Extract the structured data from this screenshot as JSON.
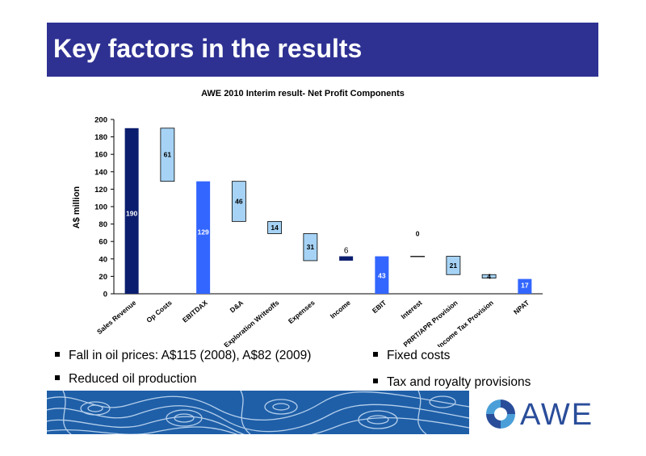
{
  "slide": {
    "title": "Key factors in the results",
    "bullets_left": [
      "Fall in oil prices: A$115 (2008), A$82 (2009)",
      "Reduced oil production"
    ],
    "bullets_right": [
      "Fixed costs",
      "Tax and royalty provisions"
    ],
    "logo_text": "AWE",
    "colors": {
      "title_bg": "#2e3192",
      "navy": "#0b1d6e",
      "blue": "#3366ff",
      "light_blue": "#a6d3f5"
    }
  },
  "chart_data": {
    "type": "bar",
    "subtype": "waterfall",
    "title": "AWE 2010 Interim result- Net Profit Components",
    "ylabel": "A$ million",
    "ylim": [
      0,
      200
    ],
    "yticks": [
      "0",
      "20",
      "40",
      "60",
      "80",
      "100",
      "120",
      "140",
      "160",
      "180",
      "200"
    ],
    "categories": [
      "Sales Revenue",
      "Op Costs",
      "EBITDAX",
      "D&A",
      "Exploration Writeoffs",
      "Expenses",
      "Income",
      "EBIT",
      "Interest",
      "PRRT/APR Provision",
      "Income Tax Provision",
      "NPAT"
    ],
    "bars": [
      {
        "label": "190",
        "bottom": 0,
        "top": 190,
        "color": "#0b1d6e",
        "label_color": "#ffffff"
      },
      {
        "label": "61",
        "bottom": 129,
        "top": 190,
        "color": "#a6d3f5",
        "label_color": "#000000"
      },
      {
        "label": "129",
        "bottom": 0,
        "top": 129,
        "color": "#3366ff",
        "label_color": "#ffffff"
      },
      {
        "label": "46",
        "bottom": 83,
        "top": 129,
        "color": "#a6d3f5",
        "label_color": "#000000"
      },
      {
        "label": "14",
        "bottom": 69,
        "top": 83,
        "color": "#a6d3f5",
        "label_color": "#000000"
      },
      {
        "label": "31",
        "bottom": 38,
        "top": 69,
        "color": "#a6d3f5",
        "label_color": "#000000"
      },
      {
        "label": "6",
        "bottom": 38,
        "top": 43,
        "color": "#0b1d6e",
        "label_color": "#000000"
      },
      {
        "label": "43",
        "bottom": 0,
        "top": 43,
        "color": "#3366ff",
        "label_color": "#ffffff"
      },
      {
        "label": "0",
        "bottom": 43,
        "top": 43,
        "color": "#a6d3f5",
        "label_color": "#000000"
      },
      {
        "label": "21",
        "bottom": 22,
        "top": 43,
        "color": "#a6d3f5",
        "label_color": "#000000"
      },
      {
        "label": "4",
        "bottom": 18,
        "top": 22,
        "color": "#a6d3f5",
        "label_color": "#000000"
      },
      {
        "label": "17",
        "bottom": 0,
        "top": 17,
        "color": "#3366ff",
        "label_color": "#ffffff"
      }
    ]
  }
}
